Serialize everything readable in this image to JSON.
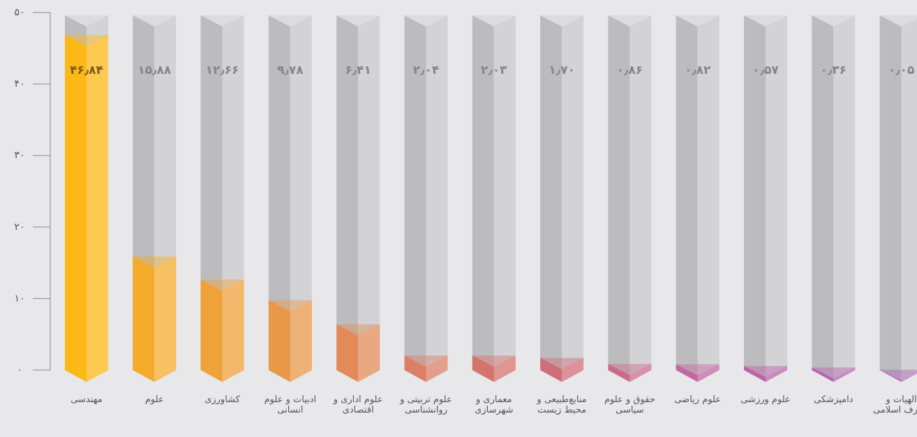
{
  "chart_data": {
    "type": "bar",
    "categories": [
      "مهندسی",
      "علوم",
      "کشاورزی",
      "ادبیات و علوم انسانی",
      "علوم اداری و اقتصادی",
      "علوم تربیتی و روانشناسی",
      "معماری و شهرسازی",
      "منابع‌طبیعی و محیط زیست",
      "حقوق و علوم سیاسی",
      "علوم ریاضی",
      "علوم ورزشی",
      "دامپزشکی",
      "الهیات و معارف اسلامی"
    ],
    "values": [
      46.84,
      15.88,
      12.66,
      9.78,
      6.41,
      2.04,
      2.03,
      1.7,
      0.86,
      0.82,
      0.57,
      0.36,
      0.05
    ],
    "value_labels": [
      "۴۶٫۸۴",
      "۱۵٫۸۸",
      "۱۲٫۶۶",
      "۹٫۷۸",
      "۶٫۴۱",
      "۲٫۰۴",
      "۲٫۰۳",
      "۱٫۷۰",
      "۰٫۸۶",
      "۰٫۸۲",
      "۰٫۵۷",
      "۰٫۳۶",
      "۰٫۰۵"
    ],
    "colors": [
      "#fbb817",
      "#f4ab2c",
      "#efa13a",
      "#e99848",
      "#e28b58",
      "#db7f66",
      "#d5736d",
      "#d06d7a",
      "#cb6a8a",
      "#c466a0",
      "#bc62aa",
      "#b661b1",
      "#b25fb5"
    ],
    "ylim": [
      0,
      50
    ],
    "yticks": [
      {
        "value": 0,
        "label": "۰"
      },
      {
        "value": 10,
        "label": "۱۰"
      },
      {
        "value": 20,
        "label": "۲۰"
      },
      {
        "value": 30,
        "label": "۳۰"
      },
      {
        "value": 40,
        "label": "۴۰"
      },
      {
        "value": 50,
        "label": "۵۰"
      }
    ]
  }
}
